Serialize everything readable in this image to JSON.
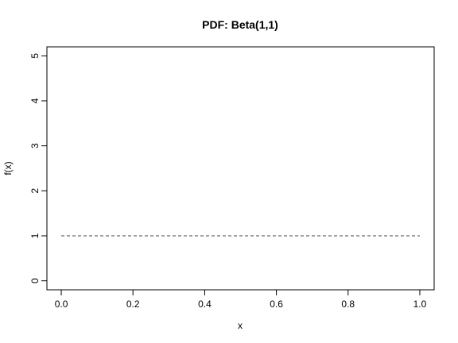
{
  "chart_data": {
    "type": "line",
    "title": "PDF: Beta(1,1)",
    "xlabel": "x",
    "ylabel": "f(x)",
    "xlim": [
      -0.04,
      1.04
    ],
    "ylim": [
      -0.2,
      5.2
    ],
    "x_ticks": [
      0.0,
      0.2,
      0.4,
      0.6,
      0.8,
      1.0
    ],
    "x_tick_labels": [
      "0.0",
      "0.2",
      "0.4",
      "0.6",
      "0.8",
      "1.0"
    ],
    "y_ticks": [
      0,
      1,
      2,
      3,
      4,
      5
    ],
    "y_tick_labels": [
      "0",
      "1",
      "2",
      "3",
      "4",
      "5"
    ],
    "grid": false,
    "legend": "none",
    "series": [
      {
        "line_style": "dashed",
        "color": "#808080",
        "x": [
          0.0,
          1.0
        ],
        "y": [
          1.0,
          1.0
        ]
      }
    ]
  }
}
